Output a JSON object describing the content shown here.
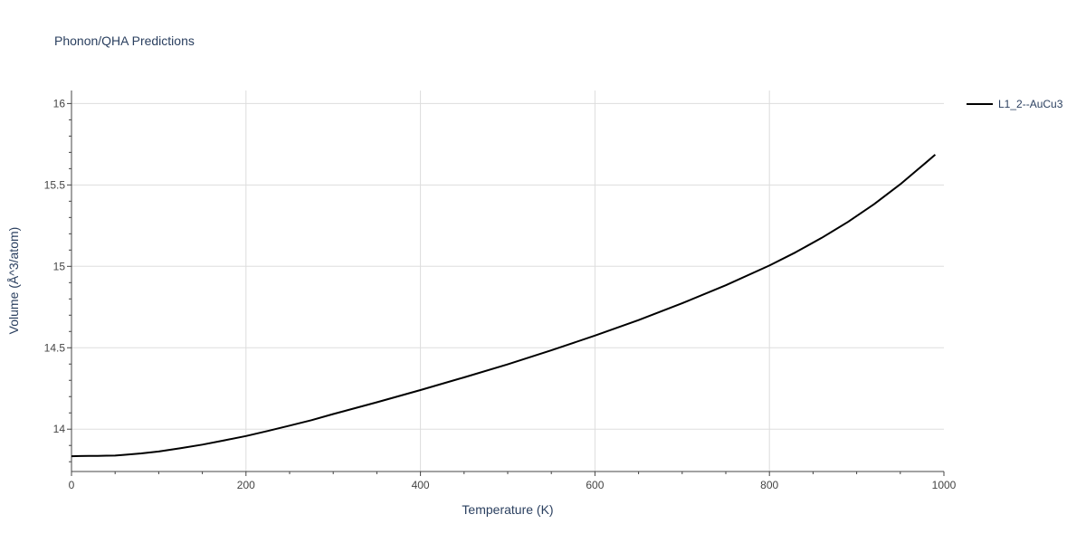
{
  "chart_data": {
    "type": "line",
    "title": "Phonon/QHA Predictions",
    "xlabel": "Temperature (K)",
    "ylabel": "Volume (Å^3/atom)",
    "xlim": [
      0,
      1000
    ],
    "ylim": [
      13.74,
      16.08
    ],
    "xticks": [
      0,
      200,
      400,
      600,
      800,
      1000
    ],
    "yticks": [
      14,
      14.5,
      15,
      15.5,
      16
    ],
    "xtick_labels": [
      "0",
      "200",
      "400",
      "600",
      "800",
      "1000"
    ],
    "ytick_labels": [
      "14",
      "14.5",
      "15",
      "15.5",
      "16"
    ],
    "grid": true,
    "legend_position": "top-right",
    "series": [
      {
        "name": "L1_2--AuCu3",
        "color": "#000000",
        "x": [
          0,
          10,
          20,
          30,
          40,
          50,
          60,
          80,
          100,
          125,
          150,
          175,
          200,
          225,
          250,
          275,
          300,
          350,
          400,
          450,
          500,
          550,
          600,
          650,
          700,
          750,
          800,
          830,
          860,
          890,
          920,
          950,
          980,
          990
        ],
        "y": [
          13.834,
          13.835,
          13.836,
          13.836,
          13.837,
          13.838,
          13.842,
          13.851,
          13.863,
          13.883,
          13.905,
          13.931,
          13.958,
          13.989,
          14.022,
          14.055,
          14.093,
          14.165,
          14.24,
          14.318,
          14.398,
          14.484,
          14.575,
          14.67,
          14.773,
          14.884,
          15.005,
          15.086,
          15.175,
          15.273,
          15.382,
          15.504,
          15.64,
          15.686
        ]
      }
    ]
  }
}
